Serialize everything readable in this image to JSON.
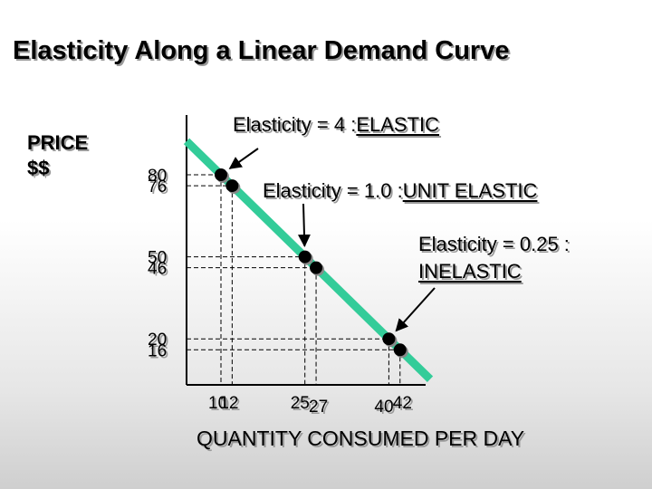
{
  "chart_data": {
    "type": "line",
    "title": "Elasticity Along a Linear Demand Curve",
    "ylabel_lines": [
      "PRICE",
      "$$"
    ],
    "xlabel": "QUANTITY CONSUMED PER DAY",
    "line_color": "#33cc99",
    "point_color": "#000000",
    "grid": false,
    "x_ticks": [
      10,
      12,
      25,
      27,
      40,
      42
    ],
    "y_ticks": [
      80,
      76,
      50,
      46,
      20,
      16
    ],
    "points": [
      {
        "x": 10,
        "y": 80
      },
      {
        "x": 12,
        "y": 76
      },
      {
        "x": 25,
        "y": 50
      },
      {
        "x": 27,
        "y": 46
      },
      {
        "x": 40,
        "y": 20
      },
      {
        "x": 42,
        "y": 16
      }
    ],
    "annotations": [
      {
        "text_before": "Elasticity = 4 : ",
        "text_emph": "ELASTIC",
        "arrow_to_point": 0
      },
      {
        "text_before": "Elasticity = 1.0 : ",
        "text_emph": "UNIT ELASTIC",
        "arrow_to_point": 2
      },
      {
        "text_before": "Elasticity = 0.25 :",
        "text_emph": "INELASTIC",
        "arrow_to_point": 4
      }
    ]
  }
}
